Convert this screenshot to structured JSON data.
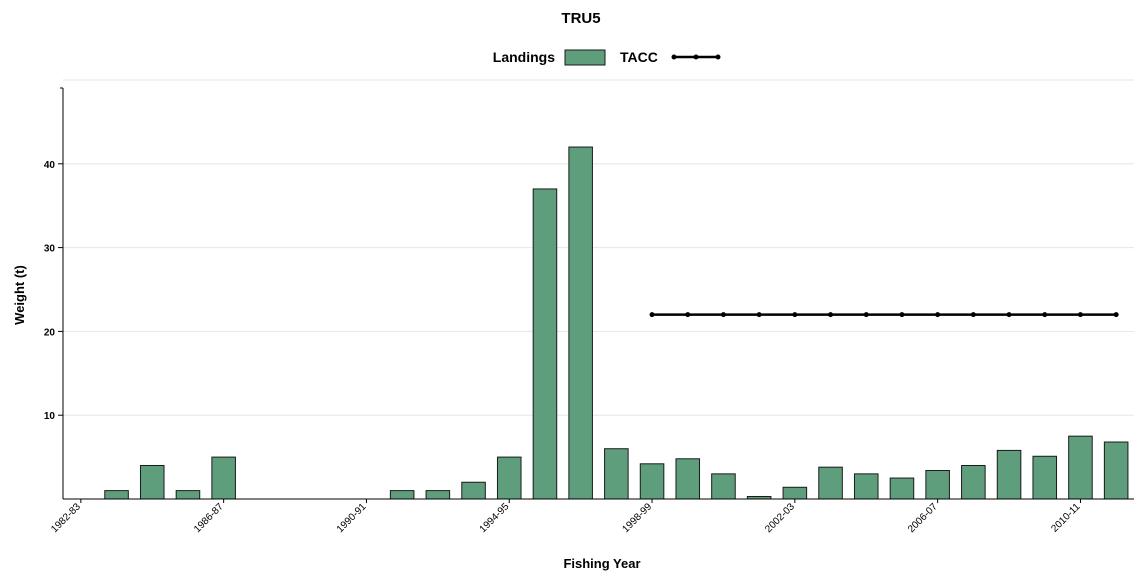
{
  "chart_data": {
    "type": "bar",
    "title": "TRU5",
    "xlabel": "Fishing Year",
    "ylabel": "Weight (t)",
    "ylim": [
      0,
      50
    ],
    "yticks": [
      10,
      20,
      30,
      40
    ],
    "grid": true,
    "legend_position": "top-center",
    "categories": [
      "1982-83",
      "1983-84",
      "1984-85",
      "1985-86",
      "1986-87",
      "1987-88",
      "1988-89",
      "1989-90",
      "1990-91",
      "1991-92",
      "1992-93",
      "1993-94",
      "1994-95",
      "1995-96",
      "1996-97",
      "1997-98",
      "1998-99",
      "1999-00",
      "2000-01",
      "2001-02",
      "2002-03",
      "2003-04",
      "2004-05",
      "2005-06",
      "2006-07",
      "2007-08",
      "2008-09",
      "2009-10",
      "2010-11",
      "2011-12"
    ],
    "x_tick_labels": [
      "1982-83",
      "1986-87",
      "1990-91",
      "1994-95",
      "1998-99",
      "2002-03",
      "2006-07",
      "2010-11"
    ],
    "series": [
      {
        "name": "Landings",
        "type": "bar",
        "color": "#5f9e7d",
        "values": [
          0,
          1,
          4,
          1,
          5,
          0,
          0,
          0,
          0,
          1,
          1,
          2,
          5,
          37,
          42,
          6,
          4.2,
          4.8,
          3,
          0.3,
          1.4,
          3.8,
          3,
          2.5,
          3.4,
          4,
          5.8,
          5.1,
          7.5,
          6.8
        ]
      },
      {
        "name": "TACC",
        "type": "line",
        "color": "#000000",
        "values": [
          null,
          null,
          null,
          null,
          null,
          null,
          null,
          null,
          null,
          null,
          null,
          null,
          null,
          null,
          null,
          null,
          22,
          22,
          22,
          22,
          22,
          22,
          22,
          22,
          22,
          22,
          22,
          22,
          22,
          22
        ]
      }
    ]
  }
}
